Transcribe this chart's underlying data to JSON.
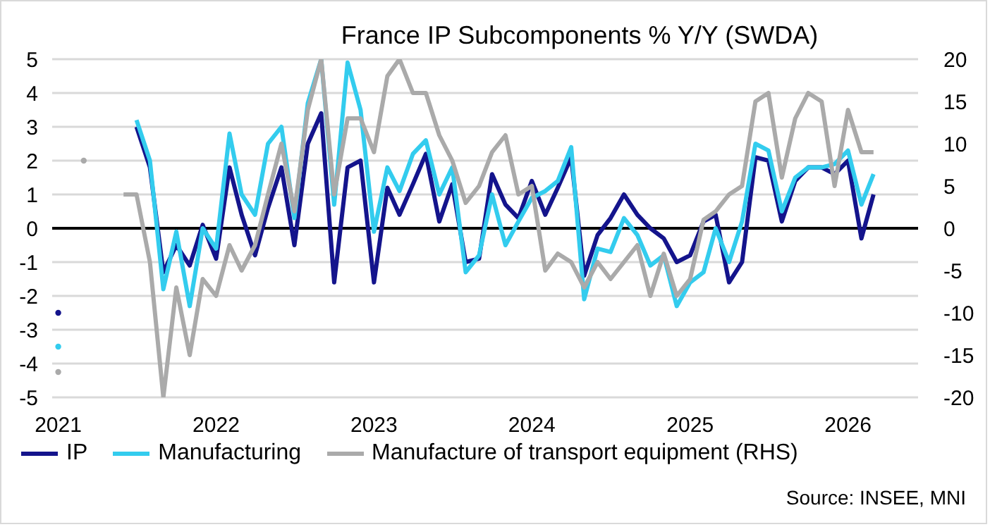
{
  "chart_data": {
    "type": "line",
    "title": "France IP Subcomponents % Y/Y (SWDA)",
    "x": [
      "2021-01",
      "2021-02",
      "2021-03",
      "2021-04",
      "2021-05",
      "2021-06",
      "2021-07",
      "2021-08",
      "2021-09",
      "2021-10",
      "2021-11",
      "2021-12",
      "2022-01",
      "2022-02",
      "2022-03",
      "2022-04",
      "2022-05",
      "2022-06",
      "2022-07",
      "2022-08",
      "2022-09",
      "2022-10",
      "2022-11",
      "2022-12",
      "2023-01",
      "2023-02",
      "2023-03",
      "2023-04",
      "2023-05",
      "2023-06",
      "2023-07",
      "2023-08",
      "2023-09",
      "2023-10",
      "2023-11",
      "2023-12",
      "2024-01",
      "2024-02",
      "2024-03",
      "2024-04",
      "2024-05",
      "2024-06",
      "2024-07",
      "2024-08",
      "2024-09",
      "2024-10",
      "2024-11",
      "2024-12",
      "2025-01",
      "2025-02",
      "2025-03",
      "2025-04",
      "2025-05",
      "2025-06",
      "2025-07",
      "2025-08",
      "2025-09",
      "2025-10",
      "2025-11",
      "2025-12",
      "2026-01",
      "2026-02",
      "2026-03"
    ],
    "series": [
      {
        "name": "IP",
        "color": "#14148c",
        "values": [
          -2.5,
          null,
          null,
          null,
          null,
          null,
          3.0,
          1.8,
          -1.3,
          -0.5,
          -1.1,
          0.1,
          -0.9,
          1.8,
          0.4,
          -0.8,
          0.6,
          1.8,
          -0.5,
          2.5,
          3.4,
          -1.6,
          1.8,
          2.0,
          -1.6,
          1.2,
          0.4,
          1.3,
          2.2,
          0.2,
          1.3,
          -1.0,
          -0.9,
          1.6,
          0.7,
          0.3,
          1.4,
          0.4,
          1.2,
          2.1,
          -1.4,
          -0.2,
          0.3,
          1.0,
          0.4,
          0.0,
          -0.3,
          -1.0,
          -0.8,
          0.2,
          0.4,
          -1.6,
          -1.0,
          2.1,
          2.0,
          0.2,
          1.4,
          1.8,
          1.8,
          1.6,
          2.0,
          -0.3,
          1.0
        ]
      },
      {
        "name": "Manufacturing",
        "color": "#33ccee",
        "values": [
          -3.5,
          null,
          null,
          null,
          null,
          null,
          3.2,
          2.0,
          -1.8,
          -0.1,
          -2.3,
          0.0,
          -0.6,
          2.8,
          1.0,
          0.4,
          2.5,
          3.0,
          0.3,
          3.7,
          5.0,
          0.7,
          4.9,
          3.5,
          -0.1,
          1.8,
          1.1,
          2.2,
          2.6,
          1.0,
          1.8,
          -1.3,
          -0.8,
          1.0,
          -0.5,
          0.2,
          0.9,
          1.1,
          1.4,
          2.4,
          -2.1,
          -0.6,
          -0.7,
          0.3,
          -0.2,
          -1.1,
          -0.8,
          -2.3,
          -1.6,
          -1.3,
          0.0,
          -1.0,
          0.2,
          2.5,
          2.3,
          0.5,
          1.5,
          1.8,
          1.8,
          1.9,
          2.3,
          0.7,
          1.6
        ]
      },
      {
        "name": "Manufacture of transport equipment (RHS)",
        "color": "#aaaaaa",
        "axis": "y2",
        "values": [
          -17,
          null,
          8,
          null,
          null,
          4,
          4,
          -4,
          -20,
          -7,
          -15,
          -6,
          -8,
          -2,
          -5,
          -2,
          4,
          10,
          2,
          14,
          20,
          4,
          13,
          13,
          9,
          18,
          20,
          16,
          16,
          11,
          8,
          3,
          5,
          9,
          11,
          4,
          5,
          -5,
          -3,
          -4,
          -7,
          -4,
          -6,
          -4,
          -2,
          -8,
          -3,
          -8,
          -6,
          1,
          2,
          4,
          5,
          15,
          16,
          6,
          13,
          16,
          15,
          5,
          14,
          9,
          9
        ]
      }
    ],
    "xlim": [
      "2020-12-18",
      "2026-06-12"
    ],
    "xticks": [
      {
        "value": "2021-01",
        "label": "2021"
      },
      {
        "value": "2022-01",
        "label": "2022"
      },
      {
        "value": "2023-01",
        "label": "2023"
      },
      {
        "value": "2024-01",
        "label": "2024"
      },
      {
        "value": "2025-01",
        "label": "2025"
      },
      {
        "value": "2026-01",
        "label": "2026"
      }
    ],
    "ylim": [
      -5,
      5
    ],
    "yticks": [
      -5,
      -4,
      -3,
      -2,
      -1,
      0,
      1,
      2,
      3,
      4,
      5
    ],
    "y2lim": [
      -20,
      20
    ],
    "y2ticks": [
      -20,
      -15,
      -10,
      -5,
      0,
      5,
      10,
      15,
      20
    ],
    "ref_lines": [
      {
        "axis": "y",
        "value": 0,
        "color": "#000000"
      }
    ],
    "grid": "y",
    "legend": "bottom",
    "annotations": [
      "Source: INSEE, MNI"
    ]
  }
}
